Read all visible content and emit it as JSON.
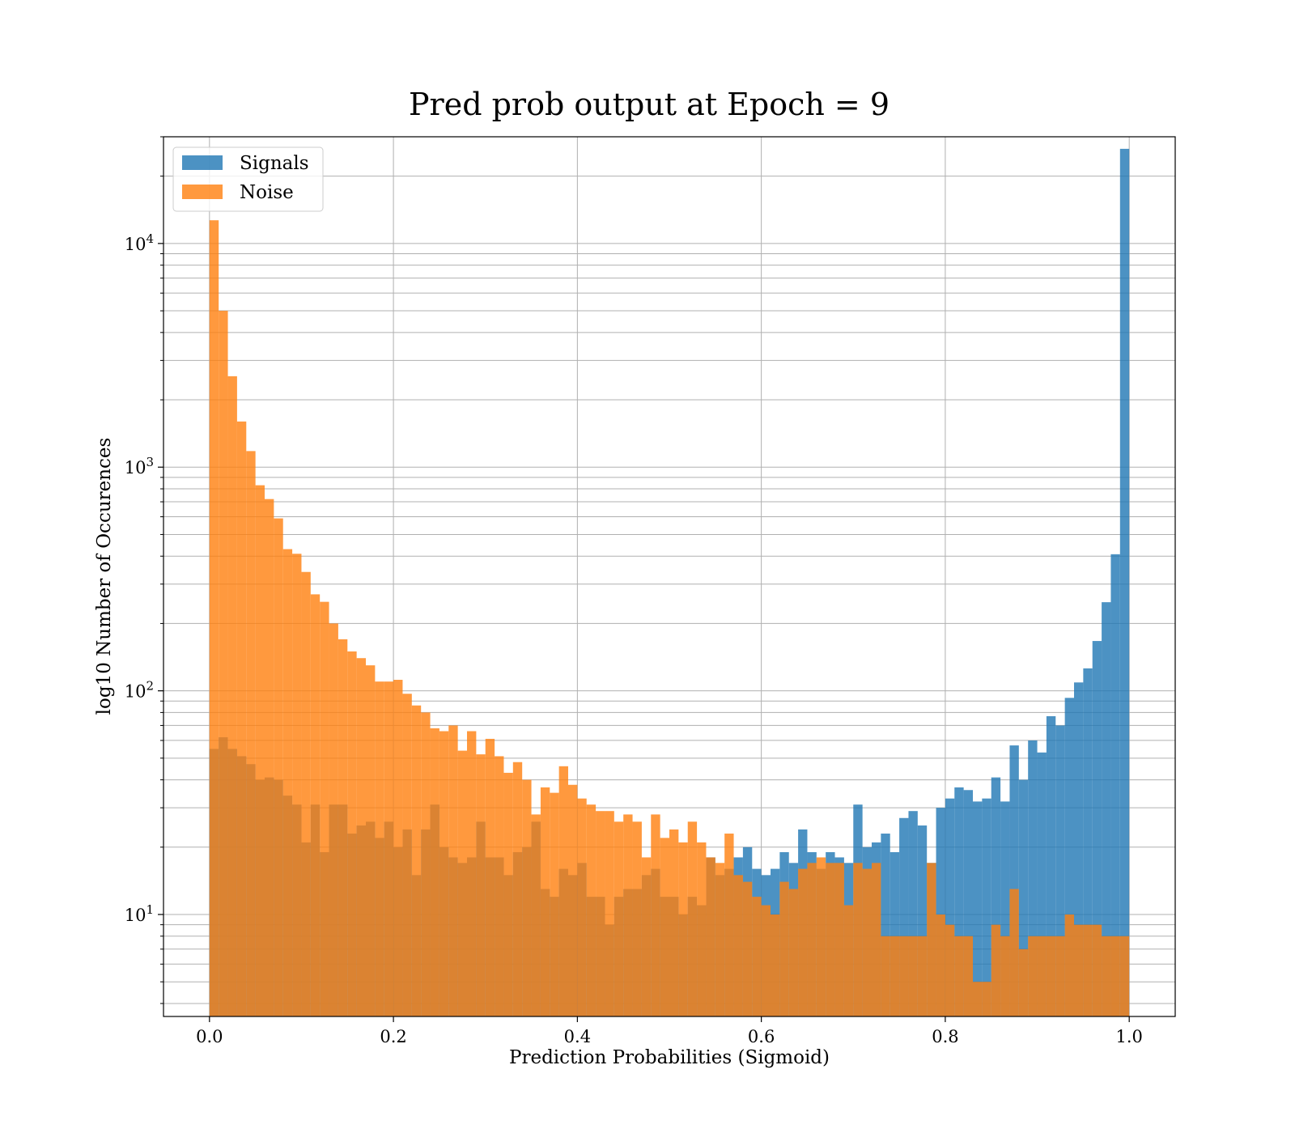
{
  "chart_data": {
    "type": "bar",
    "subtype": "histogram",
    "title": "Pred prob output at Epoch = 9",
    "xlabel": "Prediction Probabilities (Sigmoid)",
    "ylabel": "log10 Number of Occurences",
    "xlim": [
      -0.05,
      1.05
    ],
    "ylim": [
      3.5,
      30000
    ],
    "yscale": "log",
    "grid": true,
    "legend_placement": "top-left",
    "x_ticks": [
      0.0,
      0.2,
      0.4,
      0.6,
      0.8,
      1.0
    ],
    "x_tick_labels": [
      "0.0",
      "0.2",
      "0.4",
      "0.6",
      "0.8",
      "1.0"
    ],
    "y_ticks": [
      10,
      100,
      1000,
      10000
    ],
    "y_tick_labels": [
      {
        "base": "10",
        "exp": "1"
      },
      {
        "base": "10",
        "exp": "2"
      },
      {
        "base": "10",
        "exp": "3"
      },
      {
        "base": "10",
        "exp": "4"
      }
    ],
    "bin_range": [
      0.0,
      1.0
    ],
    "bins": 100,
    "series": [
      {
        "name": "Signals",
        "color": "#1f77b4",
        "opacity": 0.8,
        "values": [
          55,
          62,
          55,
          51,
          47,
          40,
          41,
          40,
          34,
          31,
          21,
          31,
          19,
          31,
          31,
          23,
          25,
          26,
          22,
          26,
          20,
          24,
          15,
          24,
          31,
          20,
          18,
          17,
          18,
          26,
          18,
          18,
          15,
          19,
          20,
          26,
          13,
          12,
          16,
          15,
          17,
          12,
          12,
          9,
          12,
          13,
          13,
          15,
          16,
          12,
          12,
          10,
          12,
          11,
          18,
          15,
          16,
          18,
          20,
          16,
          15,
          16,
          19,
          17,
          24,
          19,
          16,
          19,
          18,
          17,
          31,
          20,
          21,
          23,
          19,
          27,
          29,
          25,
          17,
          30,
          33,
          37,
          36,
          32,
          33,
          41,
          32,
          57,
          40,
          60,
          53,
          77,
          70,
          93,
          109,
          126,
          167,
          249,
          408,
          26500
        ]
      },
      {
        "name": "Noise",
        "color": "#ff7f0e",
        "opacity": 0.8,
        "values": [
          12700,
          5000,
          2550,
          1600,
          1180,
          830,
          720,
          590,
          430,
          410,
          340,
          270,
          250,
          200,
          170,
          150,
          140,
          130,
          110,
          110,
          112,
          97,
          86,
          80,
          68,
          66,
          70,
          54,
          66,
          52,
          61,
          51,
          43,
          48,
          40,
          28,
          37,
          35,
          46,
          38,
          33,
          31,
          29,
          29,
          26,
          28,
          26,
          18,
          28,
          22,
          24,
          21,
          26,
          21,
          18,
          17,
          23,
          15,
          14,
          12,
          11,
          10,
          14,
          13,
          16,
          17,
          18,
          17,
          17,
          11,
          17,
          16,
          17,
          8,
          8,
          8,
          8,
          8,
          17,
          10,
          9,
          8,
          8,
          5,
          5,
          9,
          8,
          13,
          7,
          8,
          8,
          8,
          8,
          10,
          9,
          9,
          9,
          8,
          8,
          8
        ]
      }
    ]
  }
}
